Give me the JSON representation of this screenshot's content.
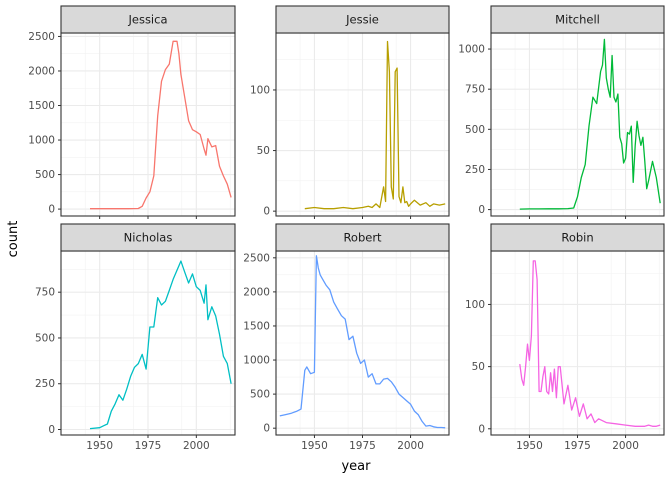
{
  "chart_data": {
    "type": "line",
    "xlabel": "year",
    "ylabel": "count",
    "facet_column_xlim": [
      1930,
      2020
    ],
    "x_ticks": [
      1950,
      1975,
      2000
    ],
    "grid": true,
    "legend": "none",
    "facets": [
      {
        "name": "Jessica",
        "color": "#F8766D",
        "ylim": [
          -100,
          2550
        ],
        "y_ticks": [
          0,
          500,
          1000,
          1500,
          2000,
          2500
        ],
        "x": [
          1945,
          1950,
          1955,
          1960,
          1965,
          1970,
          1972,
          1974,
          1976,
          1978,
          1980,
          1982,
          1984,
          1986,
          1988,
          1990,
          1991,
          1992,
          1994,
          1996,
          1998,
          2000,
          2002,
          2004,
          2005,
          2006,
          2008,
          2010,
          2012,
          2014,
          2016,
          2018
        ],
        "y": [
          5,
          5,
          5,
          5,
          5,
          8,
          40,
          160,
          250,
          480,
          1350,
          1850,
          2020,
          2100,
          2430,
          2430,
          2250,
          1950,
          1620,
          1280,
          1150,
          1120,
          1080,
          870,
          780,
          1020,
          900,
          920,
          620,
          480,
          360,
          170
        ]
      },
      {
        "name": "Jessie",
        "color": "#B79F00",
        "ylim": [
          -4,
          147
        ],
        "y_ticks": [
          0,
          50,
          100
        ],
        "x": [
          1945,
          1950,
          1955,
          1960,
          1965,
          1970,
          1975,
          1978,
          1980,
          1982,
          1984,
          1986,
          1987,
          1988,
          1989,
          1990,
          1991,
          1992,
          1993,
          1994,
          1995,
          1996,
          1997,
          1998,
          1999,
          2000,
          2002,
          2005,
          2008,
          2010,
          2012,
          2015,
          2018
        ],
        "y": [
          2,
          3,
          2,
          2,
          3,
          2,
          3,
          4,
          3,
          6,
          3,
          20,
          8,
          140,
          115,
          20,
          10,
          115,
          118,
          12,
          7,
          20,
          7,
          8,
          4,
          6,
          9,
          5,
          7,
          4,
          6,
          5,
          6
        ]
      },
      {
        "name": "Mitchell",
        "color": "#00BA38",
        "ylim": [
          -40,
          1100
        ],
        "y_ticks": [
          0,
          250,
          500,
          750,
          1000
        ],
        "x": [
          1945,
          1950,
          1955,
          1960,
          1965,
          1970,
          1973,
          1975,
          1977,
          1979,
          1981,
          1983,
          1985,
          1987,
          1988,
          1989,
          1990,
          1991,
          1992,
          1993,
          1994,
          1995,
          1996,
          1997,
          1998,
          1999,
          2000,
          2001,
          2002,
          2003,
          2004,
          2005,
          2006,
          2007,
          2008,
          2009,
          2010,
          2011,
          2012,
          2014,
          2016,
          2018
        ],
        "y": [
          3,
          4,
          4,
          5,
          5,
          6,
          10,
          80,
          200,
          280,
          520,
          700,
          660,
          860,
          900,
          1060,
          820,
          750,
          700,
          960,
          700,
          670,
          720,
          450,
          410,
          290,
          320,
          480,
          470,
          520,
          170,
          400,
          550,
          460,
          400,
          450,
          300,
          130,
          180,
          300,
          200,
          40
        ]
      },
      {
        "name": "Nicholas",
        "color": "#00BFC4",
        "ylim": [
          -30,
          975
        ],
        "y_ticks": [
          0,
          250,
          500,
          750
        ],
        "x": [
          1945,
          1950,
          1952,
          1954,
          1956,
          1958,
          1960,
          1962,
          1964,
          1966,
          1968,
          1970,
          1972,
          1974,
          1976,
          1978,
          1980,
          1982,
          1984,
          1986,
          1988,
          1990,
          1992,
          1994,
          1996,
          1998,
          2000,
          2002,
          2004,
          2005,
          2006,
          2008,
          2010,
          2012,
          2014,
          2016,
          2018
        ],
        "y": [
          5,
          10,
          20,
          30,
          100,
          140,
          190,
          160,
          220,
          290,
          340,
          360,
          410,
          330,
          560,
          560,
          720,
          680,
          700,
          760,
          820,
          870,
          920,
          860,
          800,
          850,
          780,
          760,
          690,
          790,
          600,
          670,
          620,
          520,
          400,
          360,
          250
        ]
      },
      {
        "name": "Robert",
        "color": "#619CFF",
        "ylim": [
          -100,
          2600
        ],
        "y_ticks": [
          0,
          500,
          1000,
          1500,
          2000,
          2500
        ],
        "x": [
          1932,
          1935,
          1938,
          1941,
          1943,
          1945,
          1946,
          1948,
          1950,
          1951,
          1952,
          1953,
          1954,
          1956,
          1958,
          1960,
          1962,
          1964,
          1966,
          1968,
          1970,
          1972,
          1974,
          1976,
          1978,
          1980,
          1982,
          1984,
          1986,
          1988,
          1990,
          1992,
          1994,
          1996,
          1998,
          2000,
          2002,
          2004,
          2006,
          2008,
          2010,
          2012,
          2014,
          2016,
          2018
        ],
        "y": [
          180,
          200,
          220,
          250,
          280,
          850,
          900,
          800,
          820,
          2530,
          2350,
          2250,
          2200,
          2100,
          2030,
          1850,
          1750,
          1650,
          1600,
          1300,
          1350,
          1100,
          950,
          1000,
          750,
          800,
          650,
          650,
          720,
          730,
          680,
          600,
          500,
          450,
          400,
          350,
          250,
          200,
          100,
          30,
          40,
          20,
          10,
          10,
          5
        ]
      },
      {
        "name": "Robin",
        "color": "#F564E3",
        "ylim": [
          -5,
          143
        ],
        "y_ticks": [
          0,
          50,
          100
        ],
        "x": [
          1945,
          1946,
          1947,
          1948,
          1949,
          1950,
          1951,
          1952,
          1953,
          1954,
          1955,
          1956,
          1957,
          1958,
          1959,
          1960,
          1961,
          1962,
          1963,
          1964,
          1965,
          1966,
          1968,
          1970,
          1972,
          1974,
          1976,
          1978,
          1980,
          1982,
          1984,
          1986,
          1990,
          1995,
          2000,
          2005,
          2010,
          2012,
          2014,
          2016,
          2018
        ],
        "y": [
          52,
          40,
          35,
          50,
          68,
          55,
          75,
          135,
          135,
          120,
          30,
          30,
          42,
          50,
          30,
          28,
          45,
          30,
          48,
          25,
          50,
          50,
          20,
          35,
          15,
          25,
          10,
          20,
          8,
          12,
          5,
          8,
          5,
          4,
          3,
          2,
          2,
          3,
          2,
          2,
          3
        ]
      }
    ]
  }
}
